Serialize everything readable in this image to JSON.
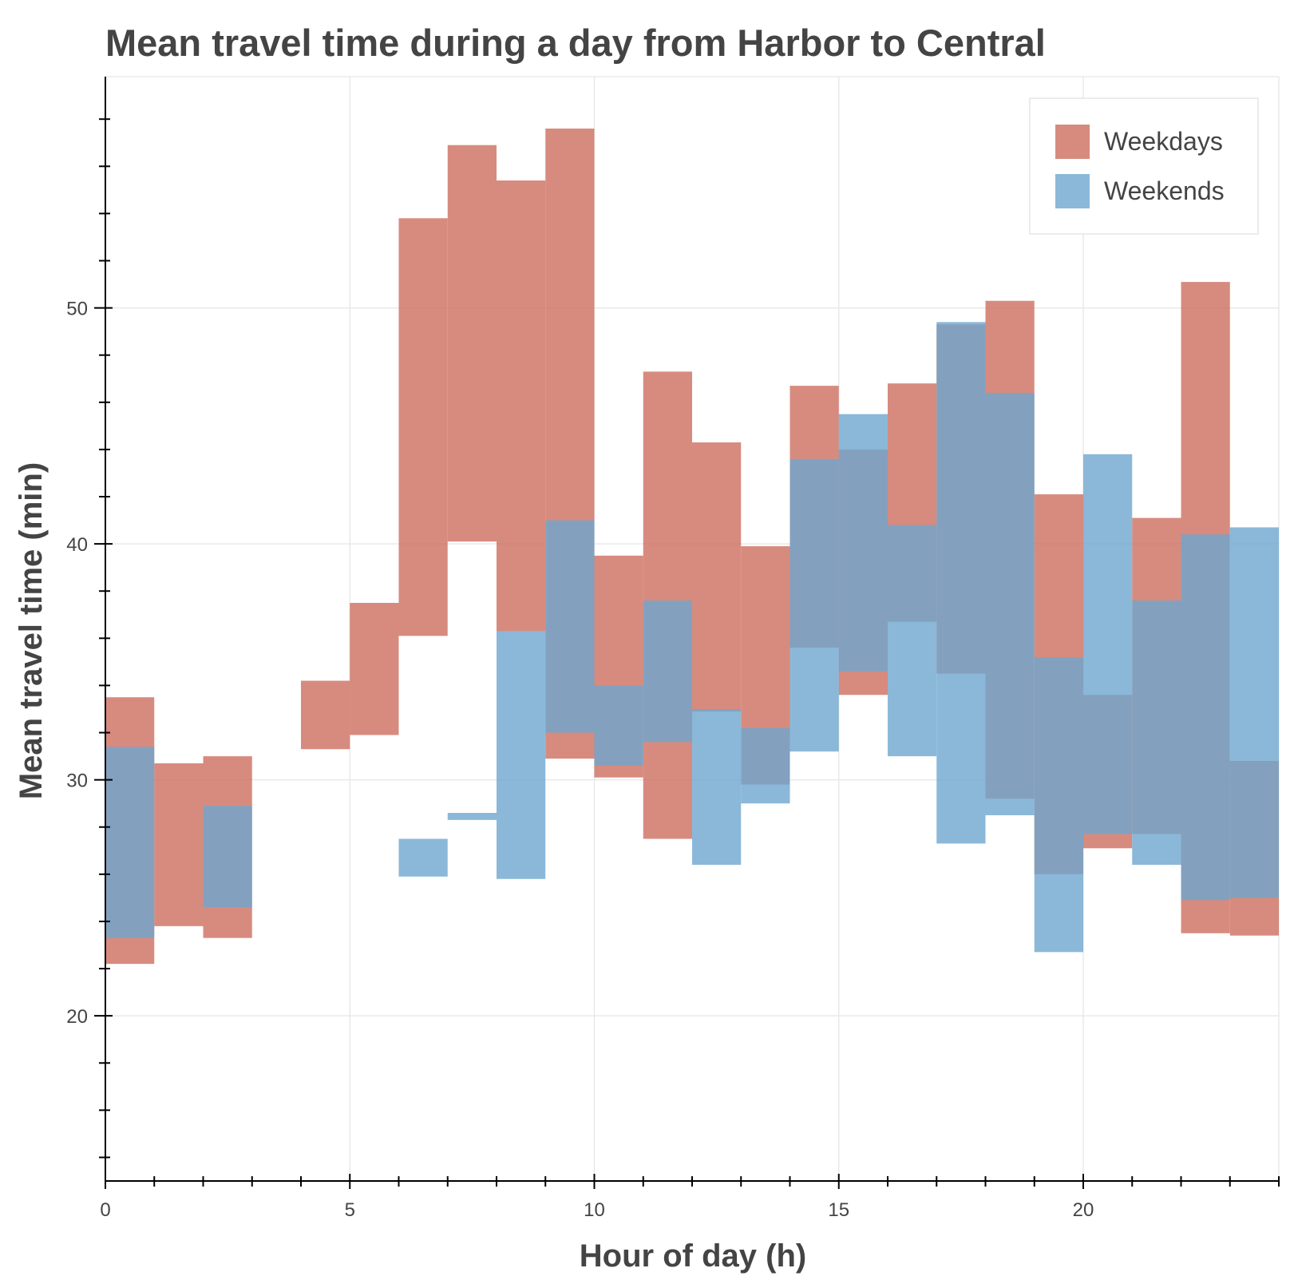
{
  "chart_data": {
    "type": "bar",
    "subtype": "floating-range",
    "title": "Mean travel time during a day from Harbor to Central",
    "xlabel": "Hour of day (h)",
    "ylabel": "Mean travel time (min)",
    "xlim": [
      0,
      24
    ],
    "ylim": [
      13.0,
      59.8
    ],
    "x_ticks": [
      0,
      5,
      10,
      15,
      20
    ],
    "y_ticks": [
      20,
      30,
      40,
      50
    ],
    "x_minor_ticks": [
      1,
      2,
      3,
      4,
      6,
      7,
      8,
      9,
      11,
      12,
      13,
      14,
      16,
      17,
      18,
      19,
      21,
      22,
      23,
      24
    ],
    "y_minor_ticks": [
      14,
      16,
      18,
      22,
      24,
      26,
      28,
      32,
      34,
      36,
      38,
      42,
      44,
      46,
      48,
      52,
      54,
      56,
      58
    ],
    "grid": true,
    "legend_position": "top-right",
    "series": [
      {
        "name": "Weekdays",
        "color": "#cd6e5e",
        "bars": [
          {
            "hour": 0,
            "low": 22.2,
            "high": 33.5
          },
          {
            "hour": 1,
            "low": 23.8,
            "high": 30.7
          },
          {
            "hour": 2,
            "low": 23.3,
            "high": 31.0
          },
          {
            "hour": 4,
            "low": 31.3,
            "high": 34.2
          },
          {
            "hour": 5,
            "low": 31.9,
            "high": 37.5
          },
          {
            "hour": 6,
            "low": 36.1,
            "high": 53.8
          },
          {
            "hour": 7,
            "low": 40.1,
            "high": 56.9
          },
          {
            "hour": 8,
            "low": 36.3,
            "high": 55.4
          },
          {
            "hour": 9,
            "low": 30.9,
            "high": 57.6
          },
          {
            "hour": 10,
            "low": 30.1,
            "high": 39.5
          },
          {
            "hour": 11,
            "low": 27.5,
            "high": 47.3
          },
          {
            "hour": 12,
            "low": 32.9,
            "high": 44.3
          },
          {
            "hour": 13,
            "low": 29.8,
            "high": 39.9
          },
          {
            "hour": 14,
            "low": 35.6,
            "high": 46.7
          },
          {
            "hour": 15,
            "low": 33.6,
            "high": 44.0
          },
          {
            "hour": 16,
            "low": 36.7,
            "high": 46.8
          },
          {
            "hour": 17,
            "low": 34.5,
            "high": 49.3
          },
          {
            "hour": 18,
            "low": 29.2,
            "high": 50.3
          },
          {
            "hour": 19,
            "low": 26.0,
            "high": 42.1
          },
          {
            "hour": 20,
            "low": 27.1,
            "high": 33.6
          },
          {
            "hour": 21,
            "low": 27.7,
            "high": 41.1
          },
          {
            "hour": 22,
            "low": 23.5,
            "high": 51.1
          },
          {
            "hour": 23,
            "low": 23.4,
            "high": 30.8
          }
        ]
      },
      {
        "name": "Weekends",
        "color": "#6ea6d0",
        "bars": [
          {
            "hour": 0,
            "low": 23.3,
            "high": 31.4
          },
          {
            "hour": 2,
            "low": 24.6,
            "high": 28.9
          },
          {
            "hour": 6,
            "low": 25.9,
            "high": 27.5
          },
          {
            "hour": 7,
            "low": 28.3,
            "high": 28.6
          },
          {
            "hour": 8,
            "low": 25.8,
            "high": 36.3
          },
          {
            "hour": 9,
            "low": 32.0,
            "high": 41.0
          },
          {
            "hour": 10,
            "low": 30.6,
            "high": 34.0
          },
          {
            "hour": 11,
            "low": 31.6,
            "high": 37.6
          },
          {
            "hour": 12,
            "low": 26.4,
            "high": 33.0
          },
          {
            "hour": 13,
            "low": 29.0,
            "high": 32.2
          },
          {
            "hour": 14,
            "low": 31.2,
            "high": 43.6
          },
          {
            "hour": 15,
            "low": 34.6,
            "high": 45.5
          },
          {
            "hour": 16,
            "low": 31.0,
            "high": 40.8
          },
          {
            "hour": 17,
            "low": 27.3,
            "high": 49.4
          },
          {
            "hour": 18,
            "low": 28.5,
            "high": 46.4
          },
          {
            "hour": 19,
            "low": 22.7,
            "high": 35.2
          },
          {
            "hour": 20,
            "low": 27.7,
            "high": 43.8
          },
          {
            "hour": 21,
            "low": 26.4,
            "high": 37.6
          },
          {
            "hour": 22,
            "low": 24.9,
            "high": 40.4
          },
          {
            "hour": 23,
            "low": 25.0,
            "high": 40.7
          }
        ]
      }
    ]
  }
}
